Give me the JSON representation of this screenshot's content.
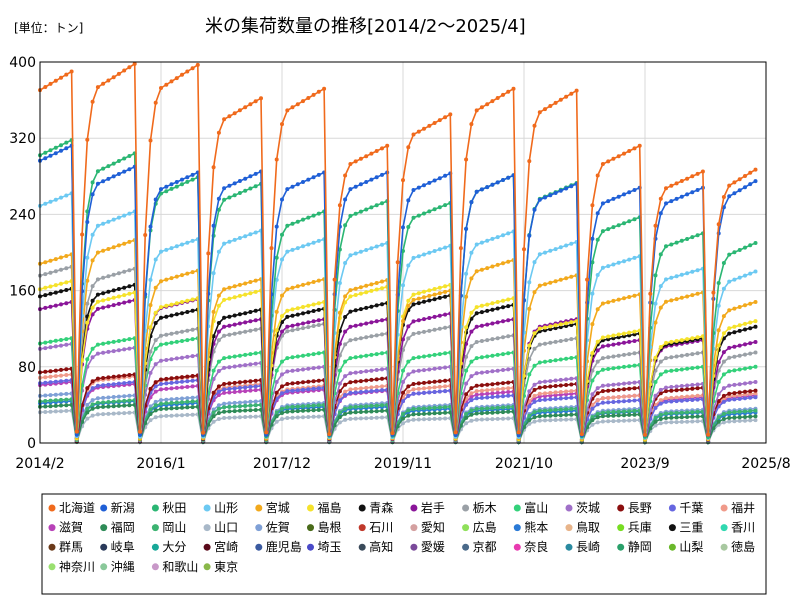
{
  "chart_data": {
    "type": "line",
    "title": "米の集荷数量の推移[2014/2～2025/4]",
    "unit_label": "[単位：トン]",
    "ylim": [
      0,
      400
    ],
    "y_ticks": [
      "0",
      "80",
      "160",
      "240",
      "320",
      "400"
    ],
    "x_ticks": [
      "2014/2",
      "2016/1",
      "2017/12",
      "2019/11",
      "2021/10",
      "2023/9",
      "2025/8"
    ],
    "grid": "both",
    "legend_placement": "bottom",
    "x_start": "2014-02",
    "x_end": "2025-08",
    "cycle_starts": [
      "2014-02",
      "2014-09",
      "2015-09",
      "2016-09",
      "2017-09",
      "2018-09",
      "2019-09",
      "2020-09",
      "2021-09",
      "2022-09",
      "2023-09",
      "2024-09"
    ],
    "legend_order": [
      "北海道",
      "新潟",
      "秋田",
      "山形",
      "宮城",
      "福島",
      "青森",
      "岩手",
      "栃木",
      "富山",
      "茨城",
      "長野",
      "千葉",
      "福井",
      "滋賀",
      "福岡",
      "岡山",
      "山口",
      "佐賀",
      "島根",
      "石川",
      "愛知",
      "広島",
      "熊本",
      "鳥取",
      "兵庫",
      "三重",
      "香川",
      "群馬",
      "岐阜",
      "大分",
      "宮崎",
      "鹿児島",
      "埼玉",
      "高知",
      "愛媛",
      "京都",
      "奈良",
      "長崎",
      "静岡",
      "山梨",
      "徳島",
      "神奈川",
      "沖縄",
      "和歌山",
      "東京"
    ],
    "series": [
      {
        "name": "北海道",
        "color": "#f06a1c",
        "marker": "circle",
        "peaks": [
          390,
          398,
          397,
          362,
          372,
          312,
          345,
          372,
          370,
          312,
          285,
          287
        ]
      },
      {
        "name": "新潟",
        "color": "#1f5fd6",
        "marker": "circle",
        "peaks": [
          312,
          290,
          284,
          285,
          284,
          284,
          283,
          281,
          272,
          268,
          268,
          275
        ]
      },
      {
        "name": "秋田",
        "color": "#2bb673",
        "marker": "circle",
        "peaks": [
          318,
          304,
          279,
          272,
          243,
          254,
          252,
          281,
          273,
          237,
          220,
          210
        ]
      },
      {
        "name": "山形",
        "color": "#6cc9f2",
        "marker": "circle",
        "peaks": [
          262,
          243,
          214,
          223,
          214,
          210,
          207,
          222,
          211,
          196,
          183,
          180
        ]
      },
      {
        "name": "宮城",
        "color": "#f2a91c",
        "marker": "circle",
        "peaks": [
          198,
          213,
          181,
          172,
          172,
          171,
          160,
          192,
          176,
          156,
          158,
          148
        ]
      },
      {
        "name": "福島",
        "color": "#f5e22b",
        "marker": "circle",
        "peaks": [
          170,
          158,
          152,
          160,
          148,
          164,
          166,
          152,
          128,
          118,
          112,
          128
        ]
      },
      {
        "name": "青森",
        "color": "#111111",
        "marker": "circle",
        "peaks": [
          162,
          166,
          140,
          140,
          141,
          147,
          155,
          145,
          125,
          115,
          110,
          122
        ]
      },
      {
        "name": "岩手",
        "color": "#8a1599",
        "marker": "circle",
        "peaks": [
          148,
          150,
          151,
          130,
          130,
          130,
          136,
          130,
          130,
          108,
          108,
          106
        ]
      },
      {
        "name": "栃木",
        "color": "#9aa0a6",
        "marker": "circle",
        "peaks": [
          185,
          183,
          120,
          120,
          125,
          115,
          122,
          113,
          110,
          95,
          95,
          95
        ]
      },
      {
        "name": "富山",
        "color": "#33d17a",
        "marker": "circle",
        "peaks": [
          110,
          110,
          110,
          95,
          95,
          95,
          95,
          95,
          90,
          82,
          80,
          80
        ]
      },
      {
        "name": "茨城",
        "color": "#a070c8",
        "marker": "circle",
        "peaks": [
          104,
          100,
          92,
          84,
          80,
          78,
          80,
          78,
          68,
          64,
          62,
          64
        ]
      },
      {
        "name": "長野",
        "color": "#8b0e0e",
        "marker": "circle",
        "peaks": [
          78,
          72,
          71,
          66,
          66,
          68,
          66,
          64,
          62,
          58,
          58,
          55
        ]
      },
      {
        "name": "千葉",
        "color": "#6666e0",
        "marker": "circle",
        "peaks": [
          66,
          64,
          66,
          60,
          58,
          56,
          55,
          50,
          48,
          45,
          46,
          48
        ]
      },
      {
        "name": "福井",
        "color": "#f09a8a",
        "marker": "circle",
        "peaks": [
          72,
          70,
          70,
          62,
          60,
          60,
          60,
          58,
          55,
          50,
          50,
          52
        ]
      },
      {
        "name": "滋賀",
        "color": "#b842b8",
        "marker": "circle",
        "peaks": [
          64,
          62,
          60,
          56,
          56,
          55,
          55,
          54,
          52,
          50,
          48,
          50
        ]
      },
      {
        "name": "福岡",
        "color": "#2e8b57",
        "marker": "circle",
        "peaks": [
          40,
          40,
          38,
          35,
          35,
          34,
          32,
          33,
          30,
          30,
          28,
          28
        ]
      },
      {
        "name": "岡山",
        "color": "#3cb371",
        "marker": "circle",
        "peaks": [
          46,
          45,
          44,
          40,
          40,
          40,
          38,
          38,
          36,
          34,
          33,
          34
        ]
      },
      {
        "name": "山口",
        "color": "#a8b8c8",
        "marker": "circle",
        "peaks": [
          34,
          32,
          30,
          28,
          28,
          27,
          26,
          26,
          25,
          24,
          23,
          24
        ]
      },
      {
        "name": "佐賀",
        "color": "#7fa0d6",
        "marker": "circle",
        "peaks": [
          52,
          50,
          48,
          44,
          42,
          42,
          40,
          40,
          38,
          36,
          35,
          36
        ]
      },
      {
        "name": "熊本",
        "color": "#2a7ad6",
        "marker": "circle",
        "peaks": [
          44,
          44,
          42,
          40,
          38,
          38,
          36,
          36,
          34,
          33,
          32,
          32
        ]
      }
    ],
    "legend_colors": [
      "#f06a1c",
      "#1f5fd6",
      "#2bb673",
      "#6cc9f2",
      "#f2a91c",
      "#f5e22b",
      "#111111",
      "#8a1599",
      "#9aa0a6",
      "#33d17a",
      "#a070c8",
      "#8b0e0e",
      "#6666e0",
      "#f09a8a",
      "#b842b8",
      "#2e8b57",
      "#3cb371",
      "#a8b8c8",
      "#7fa0d6",
      "#4a6b1a",
      "#c0392b",
      "#d4a0a0",
      "#8fe05a",
      "#2a7ad6",
      "#e8b48a",
      "#77dd22",
      "#111111",
      "#30d8b0",
      "#6b3a1a",
      "#2a3a5a",
      "#18a898",
      "#5a0a1a",
      "#3a5aa0",
      "#4a4ac8",
      "#3a4a5a",
      "#7a4a9a",
      "#4a6a8a",
      "#e83ab0",
      "#2a8aa0",
      "#2aa06a",
      "#6ab82a",
      "#a8c8a0",
      "#9ae070",
      "#8ac89a",
      "#c898c8",
      "#8ab84a"
    ]
  }
}
